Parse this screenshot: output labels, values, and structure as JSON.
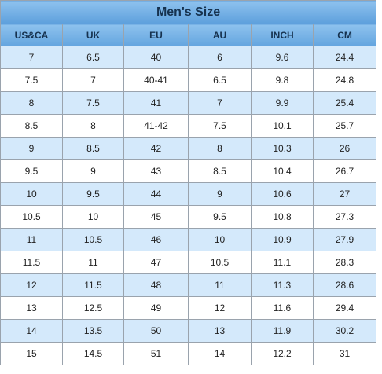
{
  "table": {
    "title": "Men's Size",
    "headers": [
      "US&CA",
      "UK",
      "EU",
      "AU",
      "INCH",
      "CM"
    ],
    "rows": [
      [
        "7",
        "6.5",
        "40",
        "6",
        "9.6",
        "24.4"
      ],
      [
        "7.5",
        "7",
        "40-41",
        "6.5",
        "9.8",
        "24.8"
      ],
      [
        "8",
        "7.5",
        "41",
        "7",
        "9.9",
        "25.4"
      ],
      [
        "8.5",
        "8",
        "41-42",
        "7.5",
        "10.1",
        "25.7"
      ],
      [
        "9",
        "8.5",
        "42",
        "8",
        "10.3",
        "26"
      ],
      [
        "9.5",
        "9",
        "43",
        "8.5",
        "10.4",
        "26.7"
      ],
      [
        "10",
        "9.5",
        "44",
        "9",
        "10.6",
        "27"
      ],
      [
        "10.5",
        "10",
        "45",
        "9.5",
        "10.8",
        "27.3"
      ],
      [
        "11",
        "10.5",
        "46",
        "10",
        "10.9",
        "27.9"
      ],
      [
        "11.5",
        "11",
        "47",
        "10.5",
        "11.1",
        "28.3"
      ],
      [
        "12",
        "11.5",
        "48",
        "11",
        "11.3",
        "28.6"
      ],
      [
        "13",
        "12.5",
        "49",
        "12",
        "11.6",
        "29.4"
      ],
      [
        "14",
        "13.5",
        "50",
        "13",
        "11.9",
        "30.2"
      ],
      [
        "15",
        "14.5",
        "51",
        "14",
        "12.2",
        "31"
      ]
    ]
  },
  "colors": {
    "header_gradient_top": "#8ec2ee",
    "header_gradient_bottom": "#5d9fdc",
    "header_text": "#16324f",
    "stripe": "#d4e9fb",
    "border": "#9aa3ad"
  }
}
